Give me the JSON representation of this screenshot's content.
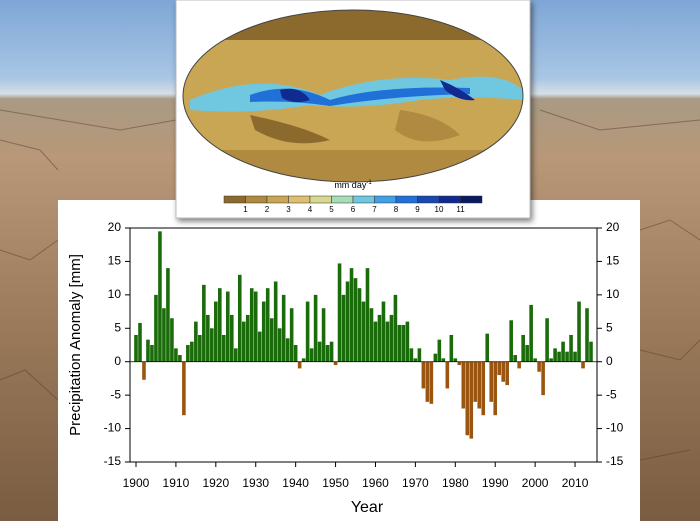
{
  "chart_data": {
    "type": "bar",
    "x_label": "Year",
    "y_label": "Precipitation Anomaly [mm]",
    "x": [
      1900,
      1901,
      1902,
      1903,
      1904,
      1905,
      1906,
      1907,
      1908,
      1909,
      1910,
      1911,
      1912,
      1913,
      1914,
      1915,
      1916,
      1917,
      1918,
      1919,
      1920,
      1921,
      1922,
      1923,
      1924,
      1925,
      1926,
      1927,
      1928,
      1929,
      1930,
      1931,
      1932,
      1933,
      1934,
      1935,
      1936,
      1937,
      1938,
      1939,
      1940,
      1941,
      1942,
      1943,
      1944,
      1945,
      1946,
      1947,
      1948,
      1949,
      1950,
      1951,
      1952,
      1953,
      1954,
      1955,
      1956,
      1957,
      1958,
      1959,
      1960,
      1961,
      1962,
      1963,
      1964,
      1965,
      1966,
      1967,
      1968,
      1969,
      1970,
      1971,
      1972,
      1973,
      1974,
      1975,
      1976,
      1977,
      1978,
      1979,
      1980,
      1981,
      1982,
      1983,
      1984,
      1985,
      1986,
      1987,
      1988,
      1989,
      1990,
      1991,
      1992,
      1993,
      1994,
      1995,
      1996,
      1997,
      1998,
      1999,
      2000,
      2001,
      2002,
      2003,
      2004,
      2005,
      2006,
      2007,
      2008,
      2009,
      2010,
      2011,
      2012,
      2013,
      2014
    ],
    "values": [
      4,
      5.8,
      -2.7,
      3.3,
      2.5,
      10,
      19.5,
      8,
      14,
      6.5,
      2,
      1,
      -8,
      2.5,
      3,
      6,
      4,
      11.5,
      7,
      5,
      9,
      11,
      4,
      10.5,
      7,
      2,
      13,
      6,
      7,
      11,
      10.5,
      4.5,
      9,
      11,
      6.5,
      12,
      5,
      10,
      3.5,
      8,
      2.5,
      -1,
      0.5,
      9,
      2,
      10,
      3,
      8,
      2.5,
      3,
      -0.5,
      14.7,
      10,
      12,
      14,
      12.5,
      11,
      9,
      14,
      8,
      6,
      7,
      9,
      6,
      7,
      10,
      5.5,
      5.5,
      6,
      2,
      0.5,
      2,
      -4,
      -6,
      -6.3,
      1.2,
      3.3,
      0.5,
      -4,
      4,
      0.5,
      -0.5,
      -7,
      -11,
      -11.5,
      -6,
      -7,
      -8,
      4.2,
      -6,
      -8,
      -2,
      -3,
      -3.5,
      6.2,
      1,
      -1,
      4,
      2.5,
      8.5,
      0.5,
      -1.5,
      -5,
      6.5,
      0.5,
      2,
      1.5,
      3,
      1.5,
      4,
      1.5,
      9,
      -1,
      8,
      3
    ],
    "positive_color": "#1a6b0a",
    "negative_color": "#9a5610",
    "xlim": [
      1898.5,
      2015.5
    ],
    "xticks": [
      1900,
      1910,
      1920,
      1930,
      1940,
      1950,
      1960,
      1970,
      1980,
      1990,
      2000,
      2010
    ],
    "ylim": [
      -15,
      20
    ],
    "yticks": [
      -15,
      -10,
      -5,
      0,
      5,
      10,
      15,
      20
    ]
  },
  "inset_map": {
    "colorbar_label": "mm day",
    "colorbar_label_exponent": "-1",
    "colorbar_ticks": [
      1,
      2,
      3,
      4,
      5,
      6,
      7,
      8,
      9,
      10,
      11
    ],
    "colorbar_colors": [
      "#8c6a2e",
      "#b08a40",
      "#c9a654",
      "#dcc070",
      "#d8d890",
      "#a8dcb8",
      "#70c8e0",
      "#40a0e8",
      "#2070d8",
      "#1848b0",
      "#102a90",
      "#0a1a60"
    ]
  }
}
